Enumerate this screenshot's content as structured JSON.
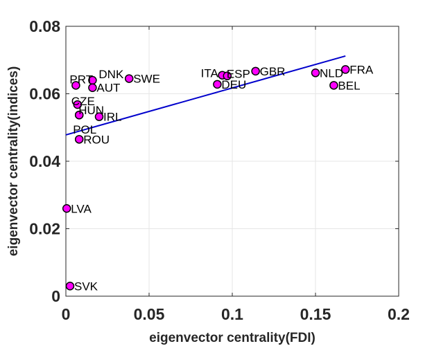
{
  "chart_data": {
    "type": "scatter",
    "title": "",
    "xlabel": "eigenvector centrality(FDI)",
    "ylabel": "eigenvector centrality(indices)",
    "xlim": [
      0,
      0.2
    ],
    "ylim": [
      0,
      0.08
    ],
    "xticks": [
      0,
      0.05,
      0.1,
      0.15,
      0.2
    ],
    "xtick_labels": [
      "0",
      "0.05",
      "0.1",
      "0.15",
      "0.2"
    ],
    "yticks": [
      0,
      0.02,
      0.04,
      0.06,
      0.08
    ],
    "ytick_labels": [
      "0",
      "0.02",
      "0.04",
      "0.06",
      "0.08"
    ],
    "grid": true,
    "points": [
      {
        "label": "PRT",
        "x": 0.006,
        "y": 0.0625
      },
      {
        "label": "DNK",
        "x": 0.016,
        "y": 0.064
      },
      {
        "label": "SWE",
        "x": 0.038,
        "y": 0.0645
      },
      {
        "label": "AUT",
        "x": 0.016,
        "y": 0.0618
      },
      {
        "label": "CZE",
        "x": 0.007,
        "y": 0.0568
      },
      {
        "label": "HUN",
        "x": 0.008,
        "y": 0.0537
      },
      {
        "label": "IRL",
        "x": 0.02,
        "y": 0.0532
      },
      {
        "label": "POL",
        "x": 0.008,
        "y": 0.0537
      },
      {
        "label": "ROU",
        "x": 0.008,
        "y": 0.0465
      },
      {
        "label": "LVA",
        "x": 0.0005,
        "y": 0.026
      },
      {
        "label": "SVK",
        "x": 0.0025,
        "y": 0.003
      },
      {
        "label": "ITA",
        "x": 0.094,
        "y": 0.0655
      },
      {
        "label": "ESP",
        "x": 0.097,
        "y": 0.0653
      },
      {
        "label": "DEU",
        "x": 0.091,
        "y": 0.0628
      },
      {
        "label": "GBR",
        "x": 0.114,
        "y": 0.0667
      },
      {
        "label": "NLD",
        "x": 0.15,
        "y": 0.0662
      },
      {
        "label": "FRA",
        "x": 0.168,
        "y": 0.0672
      },
      {
        "label": "BEL",
        "x": 0.161,
        "y": 0.0625
      }
    ],
    "fit_line": {
      "x": [
        0,
        0.168
      ],
      "y": [
        0.0478,
        0.0712
      ]
    },
    "colors": {
      "marker_fill": "#ff00ff",
      "marker_edge": "#000000",
      "fit_line": "#0000cc",
      "grid": "#e6e6e6",
      "axis": "#262626"
    }
  }
}
